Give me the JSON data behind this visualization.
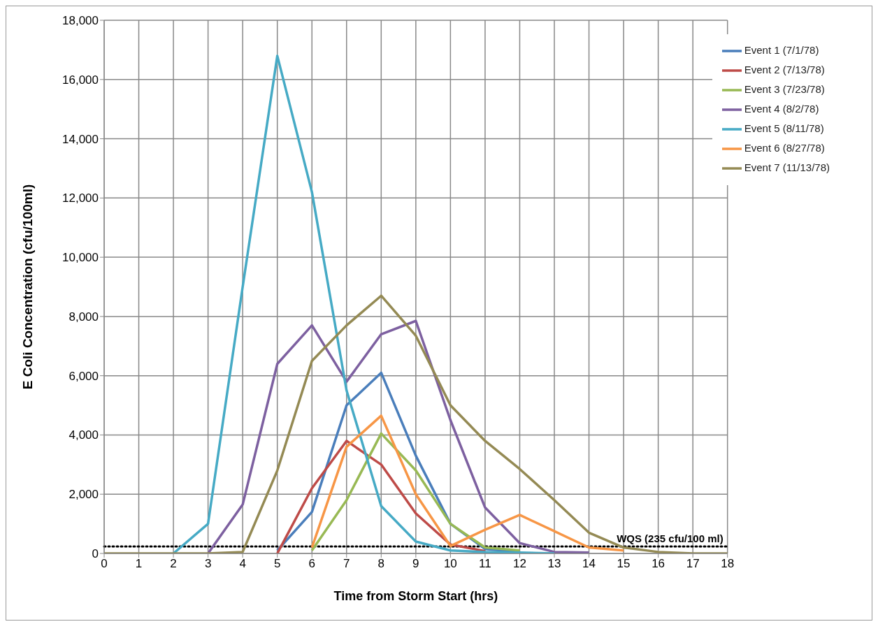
{
  "chart_data": {
    "type": "line",
    "xlabel": "Time from Storm Start (hrs)",
    "ylabel": "E Coli Concentration (cfu/100ml)",
    "x": [
      0,
      1,
      2,
      3,
      4,
      5,
      6,
      7,
      8,
      9,
      10,
      11,
      12,
      13,
      14,
      15,
      16,
      17,
      18
    ],
    "xlim": [
      0,
      18
    ],
    "xticks": [
      0,
      1,
      2,
      3,
      4,
      5,
      6,
      7,
      8,
      9,
      10,
      11,
      12,
      13,
      14,
      15,
      16,
      17,
      18
    ],
    "ylim": [
      0,
      18000
    ],
    "yticks": [
      {
        "value": 0,
        "label": "0"
      },
      {
        "value": 2000,
        "label": "2,000"
      },
      {
        "value": 4000,
        "label": "4,000"
      },
      {
        "value": 6000,
        "label": "6,000"
      },
      {
        "value": 8000,
        "label": "8,000"
      },
      {
        "value": 10000,
        "label": "10,000"
      },
      {
        "value": 12000,
        "label": "12,000"
      },
      {
        "value": 14000,
        "label": "14,000"
      },
      {
        "value": 16000,
        "label": "16,000"
      },
      {
        "value": 18000,
        "label": "18,000"
      }
    ],
    "grid": true,
    "legend": "top right",
    "marker": "none",
    "line_style": "solid",
    "series": [
      {
        "name": "Event 1 (7/1/78)",
        "color": "#4a7ebb",
        "values": [
          null,
          null,
          null,
          null,
          null,
          100,
          1400,
          5000,
          6100,
          3300,
          1000,
          150,
          50,
          null,
          null,
          null,
          null,
          null,
          null
        ]
      },
      {
        "name": "Event 2 (7/13/78)",
        "color": "#be4b48",
        "values": [
          null,
          null,
          null,
          null,
          null,
          0,
          2200,
          3800,
          3000,
          1350,
          300,
          80,
          null,
          null,
          null,
          null,
          null,
          null,
          null
        ]
      },
      {
        "name": "Event 3 (7/23/78)",
        "color": "#98b954",
        "values": [
          null,
          null,
          null,
          null,
          null,
          null,
          100,
          1800,
          4050,
          2800,
          1000,
          200,
          100,
          null,
          null,
          null,
          null,
          null,
          null
        ]
      },
      {
        "name": "Event 4 (8/2/78)",
        "color": "#7d60a0",
        "values": [
          null,
          null,
          null,
          0,
          1650,
          6400,
          7700,
          5800,
          7400,
          7850,
          4500,
          1550,
          350,
          50,
          30,
          null,
          null,
          null,
          null
        ]
      },
      {
        "name": "Event 5 (8/11/78)",
        "color": "#46aac5",
        "values": [
          null,
          null,
          0,
          1000,
          9000,
          16800,
          12200,
          5500,
          1600,
          400,
          100,
          50,
          30,
          0,
          null,
          null,
          null,
          null,
          null
        ]
      },
      {
        "name": "Event 6 (8/27/78)",
        "color": "#f79646",
        "values": [
          null,
          null,
          null,
          null,
          null,
          null,
          200,
          3600,
          4650,
          2000,
          250,
          800,
          1300,
          750,
          200,
          100,
          null,
          null,
          null
        ]
      },
      {
        "name": "Event 7 (11/13/78)",
        "color": "#948a54",
        "values": [
          0,
          0,
          0,
          0,
          50,
          2800,
          6500,
          7700,
          8700,
          7350,
          5000,
          3800,
          2850,
          1800,
          700,
          200,
          50,
          0,
          0
        ]
      }
    ],
    "ref_lines": [
      {
        "axis": "y",
        "value": 235,
        "label": "WQS (235 cfu/100 ml)",
        "color": "#000000",
        "line_style": "dotted"
      }
    ]
  }
}
